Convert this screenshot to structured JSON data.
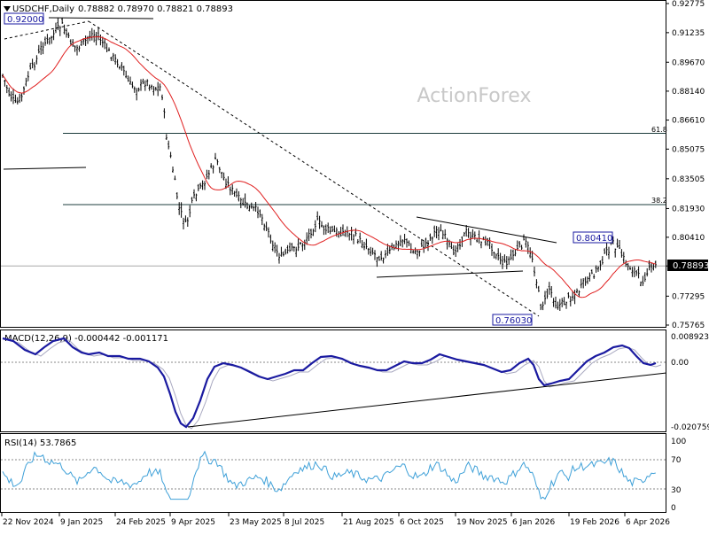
{
  "chart_data": {
    "type": "candlestick",
    "symbol_header": "USDCHF,Daily",
    "ohlc_text": "0.78882 0.78970 0.78821 0.78893",
    "watermark": "ActionForex",
    "x_tick_labels": [
      "22 Nov 2024",
      "9 Jan 2025",
      "24 Feb 2025",
      "9 Apr 2025",
      "23 May 2025",
      "8 Jul 2025",
      "21 Aug 2025",
      "6 Oct 2025",
      "19 Nov 2025",
      "6 Jan 2026",
      "19 Feb 2026",
      "6 Apr 2026"
    ],
    "price_panel": {
      "y_range": [
        0.75765,
        0.92775
      ],
      "y_ticks": [
        "0.92775",
        "0.91235",
        "0.89670",
        "0.88140",
        "0.86610",
        "0.85075",
        "0.83505",
        "0.81930",
        "0.80410",
        "0.78893",
        "0.77295",
        "0.75765"
      ],
      "current_price": "0.78893",
      "fib_levels": [
        {
          "label": "61.8",
          "price": 0.8591
        },
        {
          "label": "38.2",
          "price": 0.8214
        }
      ],
      "annotations": [
        {
          "text": "0.92000",
          "price": 0.92
        },
        {
          "text": "0.80410",
          "price": 0.8041
        },
        {
          "text": "0.76030",
          "price": 0.7603
        }
      ]
    },
    "macd_panel": {
      "label": "MACD(12,26,9) -0.000442 -0.001171",
      "y_ticks": [
        "0.008923",
        "0.00",
        "-0.020759"
      ],
      "y_range": [
        -0.020759,
        0.008923
      ]
    },
    "rsi_panel": {
      "label": "RSI(14) 53.7865",
      "y_ticks": [
        "100",
        "70",
        "30",
        "0"
      ],
      "levels": [
        70,
        30
      ]
    },
    "colors": {
      "bars": "#000000",
      "moving_average": "#e02020",
      "macd_main": "#1a1aa0",
      "macd_signal": "#9a9ab0",
      "rsi_line": "#3ea0d8",
      "current_price_line": "#a0a0a0"
    }
  }
}
